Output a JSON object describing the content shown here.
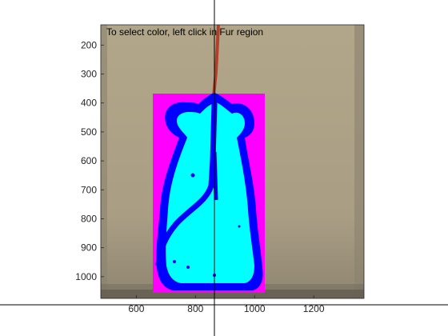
{
  "window": {
    "instruction": "To select color, left click in Fur region"
  },
  "axes": {
    "x_ticks": [
      {
        "value": 600,
        "label": "600"
      },
      {
        "value": 800,
        "label": "800"
      },
      {
        "value": 1000,
        "label": "1000"
      },
      {
        "value": 1200,
        "label": "1200"
      }
    ],
    "y_ticks": [
      {
        "value": 200,
        "label": "200"
      },
      {
        "value": 300,
        "label": "300"
      },
      {
        "value": 400,
        "label": "400"
      },
      {
        "value": 500,
        "label": "500"
      },
      {
        "value": 600,
        "label": "600"
      },
      {
        "value": 700,
        "label": "700"
      },
      {
        "value": 800,
        "label": "800"
      },
      {
        "value": 900,
        "label": "900"
      },
      {
        "value": 1000,
        "label": "1000"
      }
    ],
    "x_range": [
      480,
      1370
    ],
    "y_range": [
      130,
      1075
    ]
  },
  "cursor": {
    "x": 868
  },
  "colors": {
    "background": "#a69b80",
    "selection_box": "#ff00ff",
    "fur_fill": "#00ffff",
    "fur_outline": "#0000ff",
    "tether": "#b4402a",
    "crosshair": "#000000"
  }
}
